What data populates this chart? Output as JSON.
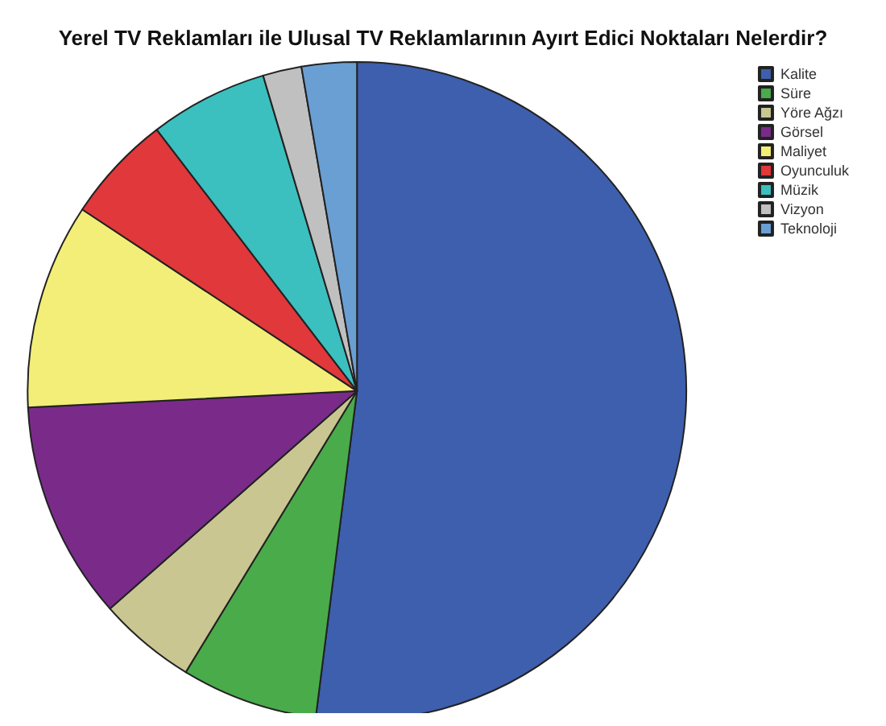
{
  "chart_data": {
    "type": "pie",
    "title": "Yerel TV Reklamları ile Ulusal TV Reklamlarının Ayırt Edici Noktaları Nelerdir?",
    "categories": [
      "Kalite",
      "Süre",
      "Yöre Ağzı",
      "Görsel",
      "Maliyet",
      "Oyunculuk",
      "Müzik",
      "Vizyon",
      "Teknoloji"
    ],
    "values": [
      52.0,
      6.7,
      4.8,
      10.7,
      10.1,
      5.3,
      5.8,
      1.9,
      2.7
    ],
    "colors": [
      "#3e5fad",
      "#4aab4a",
      "#c9c692",
      "#7a2b8a",
      "#f2ee78",
      "#e0383b",
      "#3cbfbf",
      "#c0c0c0",
      "#6a9fd4"
    ],
    "legend": "top right"
  }
}
